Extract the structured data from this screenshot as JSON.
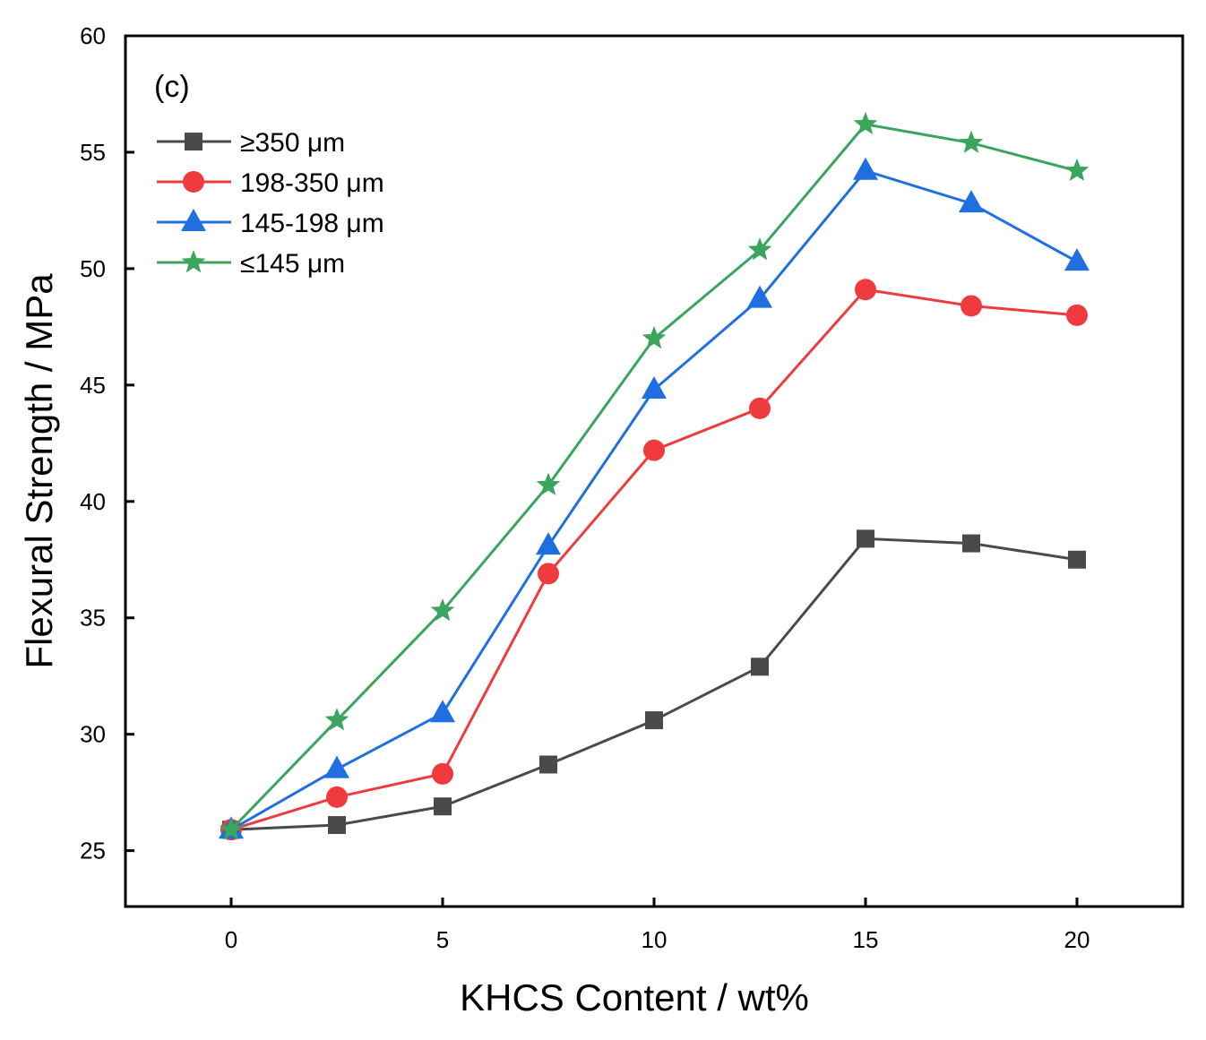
{
  "chart_data": {
    "type": "line",
    "panel_label": "(c)",
    "xlabel": "KHCS Content / wt%",
    "ylabel": "Flexural Strength / MPa",
    "xlim": [
      -2.5,
      22.5
    ],
    "ylim": [
      22.6,
      60
    ],
    "xticks": [
      0,
      5,
      10,
      15,
      20
    ],
    "yticks": [
      25,
      30,
      35,
      40,
      45,
      50,
      55,
      60
    ],
    "x": [
      0,
      2.5,
      5,
      7.5,
      10,
      12.5,
      15,
      17.5,
      20
    ],
    "legend_position": "top-left",
    "series": [
      {
        "name": "≥350 μm",
        "color": "#4a4a4a",
        "marker": "square",
        "values": [
          25.9,
          26.1,
          26.9,
          28.7,
          30.6,
          32.9,
          38.4,
          38.2,
          37.5
        ]
      },
      {
        "name": "198-350 μm",
        "color": "#ef3b3e",
        "marker": "circle",
        "values": [
          25.9,
          27.3,
          28.3,
          36.9,
          42.2,
          44.0,
          49.1,
          48.4,
          48.0
        ]
      },
      {
        "name": "145-198 μm",
        "color": "#1f6fe0",
        "marker": "triangle",
        "values": [
          25.9,
          28.5,
          30.9,
          38.1,
          44.8,
          48.7,
          54.2,
          52.8,
          50.3
        ]
      },
      {
        "name": "≤145 μm",
        "color": "#3aa55d",
        "marker": "star",
        "values": [
          25.9,
          30.6,
          35.3,
          40.7,
          47.0,
          50.8,
          56.2,
          55.4,
          54.2
        ]
      }
    ]
  }
}
